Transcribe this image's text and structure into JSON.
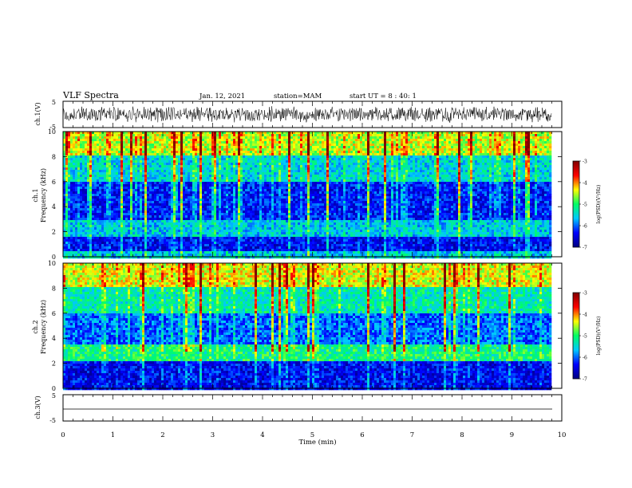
{
  "header": {
    "title": "VLF Spectra",
    "date": "Jan. 12, 2021",
    "station": "station=MAM",
    "start": "start UT = 8 : 40: 1"
  },
  "chart_data": [
    {
      "type": "line",
      "panel": "ch1-waveform",
      "ylabel": "ch.1(V)",
      "ylim": [
        -5,
        5
      ],
      "yticks": [
        "5",
        "-5"
      ],
      "description": "dense noisy waveform, amplitude about -3 to 3 V",
      "xlim": [
        0,
        10
      ]
    },
    {
      "type": "heatmap",
      "panel": "ch1-spectrogram",
      "ylabel": "ch.1 Frequency (kHz)",
      "ylim": [
        0,
        10
      ],
      "yticks": [
        "0",
        "2",
        "4",
        "6",
        "8",
        "10"
      ],
      "xlim": [
        0,
        10
      ],
      "data_end_min": 9.8,
      "colorbar": {
        "label": "log(PSD)(V²/Hz)",
        "range": [
          -7,
          -3
        ],
        "ticks": [
          "-3",
          "-4",
          "-5",
          "-6",
          "-7"
        ]
      },
      "bands": [
        {
          "freq_khz": [
            8.0,
            10.0
          ],
          "logpsd": -4.5
        },
        {
          "freq_khz": [
            6.0,
            8.0
          ],
          "logpsd": -5.5
        },
        {
          "freq_khz": [
            3.0,
            6.0
          ],
          "logpsd": -6.3
        },
        {
          "freq_khz": [
            1.5,
            3.0
          ],
          "logpsd": -5.6
        },
        {
          "freq_khz": [
            0.5,
            1.5
          ],
          "logpsd": -6.4
        },
        {
          "freq_khz": [
            0.0,
            0.5
          ],
          "logpsd": -5.6
        }
      ]
    },
    {
      "type": "heatmap",
      "panel": "ch2-spectrogram",
      "ylabel": "ch.2 Frequency (kHz)",
      "ylim": [
        0,
        10
      ],
      "yticks": [
        "0",
        "2",
        "4",
        "6",
        "8",
        "10"
      ],
      "xlim": [
        0,
        10
      ],
      "data_end_min": 9.8,
      "colorbar": {
        "label": "log(PSD)(V²/Hz)",
        "range": [
          -7,
          -3
        ],
        "ticks": [
          "-3",
          "-4",
          "-5",
          "-6",
          "-7"
        ]
      },
      "bands": [
        {
          "freq_khz": [
            8.0,
            10.0
          ],
          "logpsd": -4.4
        },
        {
          "freq_khz": [
            6.0,
            8.0
          ],
          "logpsd": -5.3
        },
        {
          "freq_khz": [
            3.5,
            6.0
          ],
          "logpsd": -6.0
        },
        {
          "freq_khz": [
            2.2,
            3.5
          ],
          "logpsd": -5.1
        },
        {
          "freq_khz": [
            0.0,
            2.2
          ],
          "logpsd": -6.4
        }
      ]
    },
    {
      "type": "line",
      "panel": "ch3-waveform",
      "ylabel": "ch.3(V)",
      "ylim": [
        -5,
        5
      ],
      "yticks": [
        "5",
        "-5"
      ],
      "values_constant": -1.5,
      "xlim": [
        0,
        10
      ]
    }
  ],
  "xaxis": {
    "label": "Time (min)",
    "ticks": [
      "0",
      "1",
      "2",
      "3",
      "4",
      "5",
      "6",
      "7",
      "8",
      "9",
      "10"
    ]
  },
  "colors": {
    "colormap": [
      "#000080",
      "#0000ff",
      "#00c8ff",
      "#00ff64",
      "#ffff00",
      "#ff0000",
      "#800000"
    ]
  }
}
